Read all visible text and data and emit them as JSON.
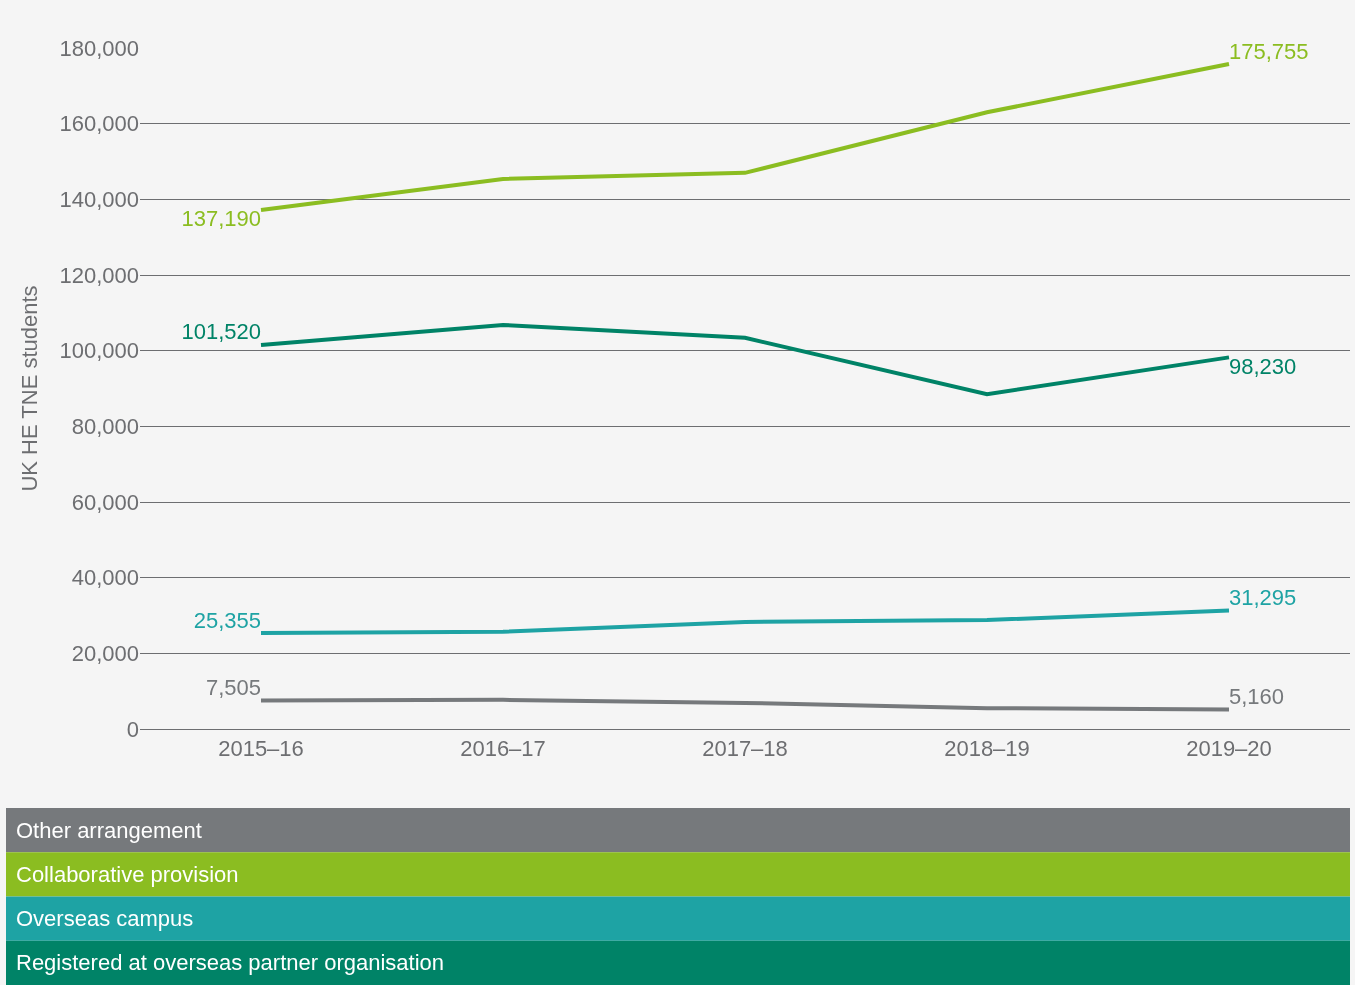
{
  "chart_data": {
    "type": "line",
    "ylabel": "UK HE TNE students",
    "categories": [
      "2015–16",
      "2016–17",
      "2017–18",
      "2018–19",
      "2019–20"
    ],
    "series": [
      {
        "name": "Other arrangement",
        "color": "#76797c",
        "values": [
          7505,
          7700,
          6900,
          5500,
          5160
        ],
        "value_labels": [
          "7,505",
          null,
          null,
          null,
          "5,160"
        ]
      },
      {
        "name": "Collaborative provision",
        "color": "#8bbd21",
        "values": [
          137190,
          145400,
          147000,
          163000,
          175755
        ],
        "value_labels": [
          "137,190",
          null,
          null,
          null,
          "175,755"
        ]
      },
      {
        "name": "Overseas campus",
        "color": "#1ea3a4",
        "values": [
          25355,
          25700,
          28300,
          28800,
          31295
        ],
        "value_labels": [
          "25,355",
          null,
          null,
          null,
          "31,295"
        ]
      },
      {
        "name": "Registered at overseas partner organisation",
        "color": "#008367",
        "values": [
          101520,
          106800,
          103400,
          88500,
          98230
        ],
        "value_labels": [
          "101,520",
          null,
          null,
          null,
          "98,230"
        ]
      }
    ],
    "ylim": [
      0,
      180000
    ],
    "yticks": [
      0,
      {
        "value": 20000,
        "label": "20,000"
      },
      {
        "value": 40000,
        "label": "40,000"
      },
      {
        "value": 60000,
        "label": "60,000"
      },
      {
        "value": 80000,
        "label": "80,000"
      },
      {
        "value": 100000,
        "label": "100,000"
      },
      {
        "value": 120000,
        "label": "120,000"
      },
      {
        "value": 140000,
        "label": "140,000"
      },
      {
        "value": 160000,
        "label": "160,000"
      },
      {
        "value": 180000,
        "label": "180,000"
      }
    ],
    "grid": "y",
    "legend": "bottom",
    "marker": "none",
    "line_style": "solid"
  }
}
